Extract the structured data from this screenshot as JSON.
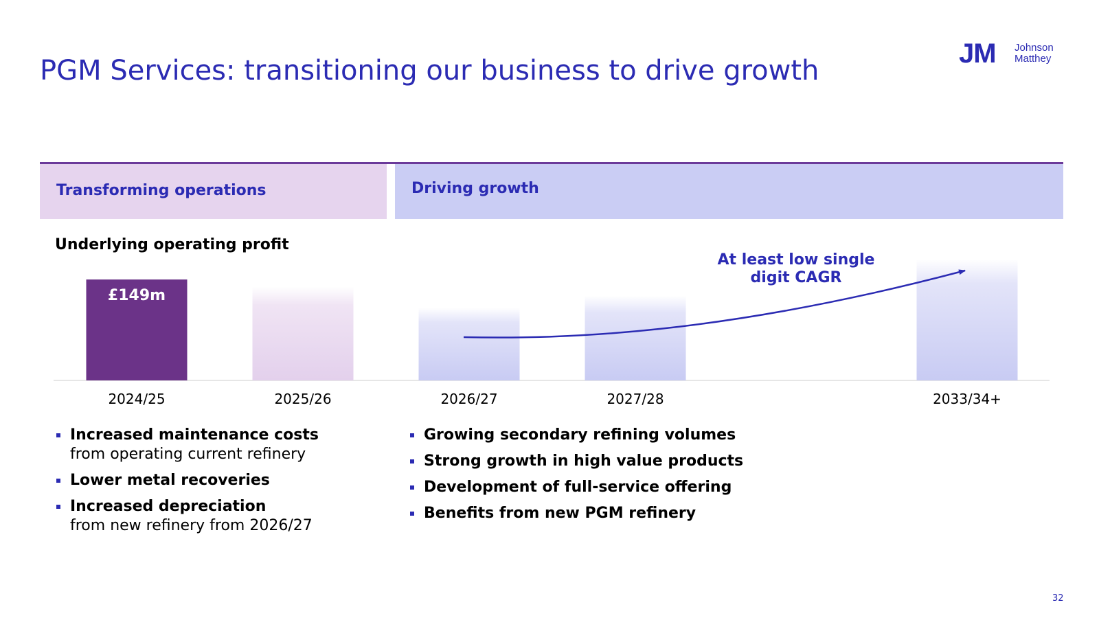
{
  "title": "PGM Services: transitioning our business to drive growth",
  "logo": {
    "mark": "JM",
    "name_line1": "Johnson",
    "name_line2": "Matthey"
  },
  "phases": {
    "left": "Transforming operations",
    "right": "Driving growth"
  },
  "colors": {
    "brand_blue": "#2b2bb3",
    "actual_bar": "#6b3388",
    "transform_tint": "#e6d4ee",
    "growth_tint": "#cacdf4"
  },
  "chart_data": {
    "type": "bar",
    "title": "Underlying operating profit",
    "categories": [
      "2024/25",
      "2025/26",
      "2026/27",
      "2027/28",
      "2033/34+"
    ],
    "values": [
      149,
      null,
      null,
      null,
      null
    ],
    "value_labels": [
      "£149m",
      "",
      "",
      "",
      ""
    ],
    "illustrative_relative_heights": [
      1.0,
      0.93,
      0.72,
      0.84,
      1.2
    ],
    "unit": "£m",
    "annotation": "At least low single digit CAGR",
    "annotation_lines": [
      "At least low single",
      "digit CAGR"
    ],
    "xlabel": "",
    "ylabel": "",
    "grid": false
  },
  "bullets_left": [
    {
      "bold": "Increased maintenance costs",
      "sub": "from operating current refinery"
    },
    {
      "bold": "Lower metal recoveries",
      "sub": ""
    },
    {
      "bold": "Increased depreciation",
      "sub": "from new refinery from 2026/27"
    }
  ],
  "bullets_right": [
    {
      "bold": "Growing secondary refining volumes"
    },
    {
      "bold": "Strong growth in high value products"
    },
    {
      "bold": "Development of full-service offering"
    },
    {
      "bold": "Benefits from new PGM refinery"
    }
  ],
  "page_number": "32"
}
